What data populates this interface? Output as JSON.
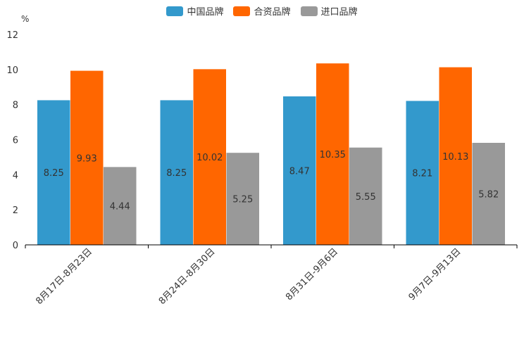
{
  "chart_data": {
    "type": "bar",
    "unit": "%",
    "categories": [
      "8月17日-8月23日",
      "8月24日-8月30日",
      "8月31日-9月6日",
      "9月7日-9月13日"
    ],
    "series": [
      {
        "name": "中国品牌",
        "color": "#3399CC",
        "values": [
          8.25,
          8.25,
          8.47,
          8.21
        ],
        "labels": [
          "8.25",
          "8.25",
          "8.47",
          "8.21"
        ]
      },
      {
        "name": "合资品牌",
        "color": "#FF6600",
        "values": [
          9.93,
          10.02,
          10.35,
          10.13
        ],
        "labels": [
          "9.93",
          "10.02",
          "10.35",
          "10.13"
        ]
      },
      {
        "name": "进口品牌",
        "color": "#999999",
        "values": [
          4.44,
          5.25,
          5.55,
          5.82
        ],
        "labels": [
          "4.44",
          "5.25",
          "5.55",
          "5.82"
        ]
      }
    ],
    "yticks": [
      "0",
      "2",
      "4",
      "6",
      "8",
      "10",
      "12"
    ],
    "ylim": [
      0,
      12
    ],
    "legend_position": "top-center"
  }
}
